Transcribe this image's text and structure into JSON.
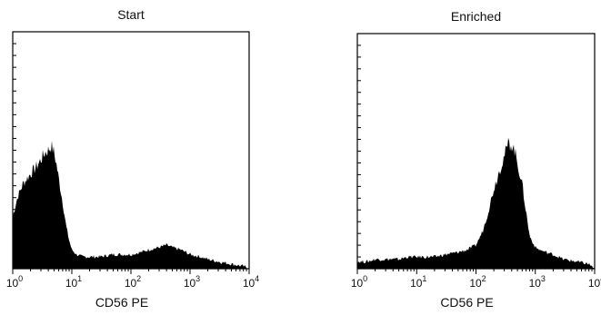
{
  "chart_data": [
    {
      "type": "area",
      "title": "Start",
      "xlabel": "CD56 PE",
      "ylabel": "",
      "xscale": "log",
      "xlim": [
        1,
        10000
      ],
      "ylim": [
        0,
        100
      ],
      "x_ticks": [
        {
          "base": "10",
          "exp": "0"
        },
        {
          "base": "10",
          "exp": "1"
        },
        {
          "base": "10",
          "exp": "2"
        },
        {
          "base": "10",
          "exp": "3"
        },
        {
          "base": "10",
          "exp": "4"
        }
      ],
      "y_minor_ticks": 20,
      "x": [
        1,
        1.2,
        1.5,
        2,
        2.5,
        3,
        3.5,
        4,
        4.5,
        5,
        5.5,
        6,
        7,
        8,
        9,
        10,
        12,
        15,
        20,
        30,
        50,
        80,
        100,
        150,
        200,
        300,
        400,
        500,
        700,
        1000,
        1500,
        2000,
        3000,
        5000,
        8000,
        10000
      ],
      "values": [
        22,
        30,
        36,
        40,
        43,
        46,
        49,
        50,
        52,
        49,
        44,
        38,
        28,
        18,
        12,
        8,
        6,
        5,
        5,
        5,
        6,
        6,
        6,
        7,
        8,
        9,
        10,
        9,
        8,
        6,
        5,
        4,
        3,
        2,
        1,
        0
      ]
    },
    {
      "type": "area",
      "title": "Enriched",
      "xlabel": "CD56 PE",
      "ylabel": "",
      "xscale": "log",
      "xlim": [
        1,
        10000
      ],
      "ylim": [
        0,
        100
      ],
      "x_ticks": [
        {
          "base": "10",
          "exp": "0"
        },
        {
          "base": "10",
          "exp": "1"
        },
        {
          "base": "10",
          "exp": "2"
        },
        {
          "base": "10",
          "exp": "3"
        },
        {
          "base": "10",
          "exp": "4"
        }
      ],
      "y_minor_ticks": 20,
      "x": [
        1,
        1.5,
        2,
        3,
        5,
        7,
        10,
        15,
        20,
        30,
        50,
        70,
        100,
        130,
        160,
        200,
        250,
        300,
        350,
        400,
        450,
        500,
        600,
        700,
        800,
        1000,
        1200,
        1500,
        2000,
        3000,
        5000,
        8000,
        10000
      ],
      "values": [
        3,
        3,
        4,
        4,
        4,
        5,
        5,
        5,
        5,
        6,
        7,
        8,
        10,
        16,
        24,
        34,
        42,
        48,
        53,
        53,
        50,
        45,
        36,
        24,
        14,
        9,
        8,
        7,
        6,
        4,
        3,
        2,
        0
      ]
    }
  ]
}
